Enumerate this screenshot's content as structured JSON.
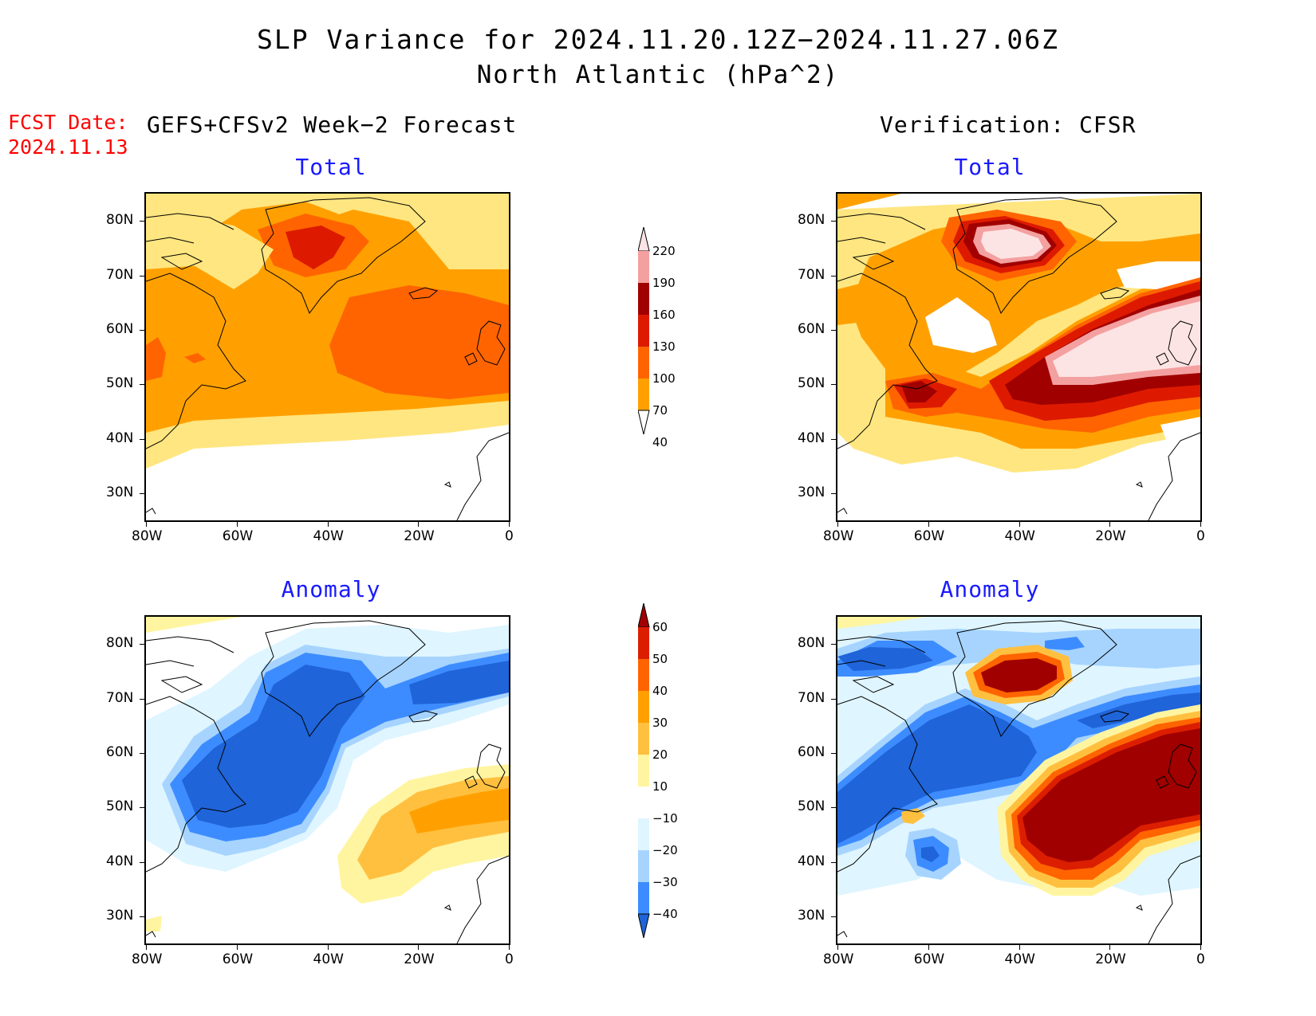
{
  "header": {
    "title_line1": "SLP Variance for 2024.11.20.12Z−2024.11.27.06Z",
    "title_line2": "North Atlantic (hPa^2)",
    "fcst_label": "FCST Date:",
    "fcst_date": "2024.11.13"
  },
  "columns": {
    "left": "GEFS+CFSv2 Week−2 Forecast",
    "right": "Verification: CFSR"
  },
  "panel_titles": {
    "forecast_total": "Total",
    "verif_total": "Total",
    "forecast_anomaly": "Anomaly",
    "verif_anomaly": "Anomaly"
  },
  "axes": {
    "lat_labels": [
      "80N",
      "70N",
      "60N",
      "50N",
      "40N",
      "30N"
    ],
    "lon_labels": [
      "80W",
      "60W",
      "40W",
      "20W",
      "0"
    ]
  },
  "colorbars": {
    "total": {
      "levels": [
        "220",
        "190",
        "160",
        "130",
        "100",
        "70",
        "40"
      ],
      "colors": [
        "#fde4e4",
        "#f4a0a0",
        "#a00000",
        "#dd1a00",
        "#ff6400",
        "#ffa000",
        "#ffe680"
      ]
    },
    "anomaly": {
      "levels": [
        "60",
        "50",
        "40",
        "30",
        "20",
        "10",
        "−10",
        "−20",
        "−30",
        "−40"
      ],
      "colors": [
        "#a00000",
        "#dc1e00",
        "#ff6400",
        "#ffa000",
        "#ffc040",
        "#fff5a0",
        "#ffffff",
        "#dff5ff",
        "#a6d4ff",
        "#3d8cff",
        "#1f64d8"
      ]
    }
  }
}
